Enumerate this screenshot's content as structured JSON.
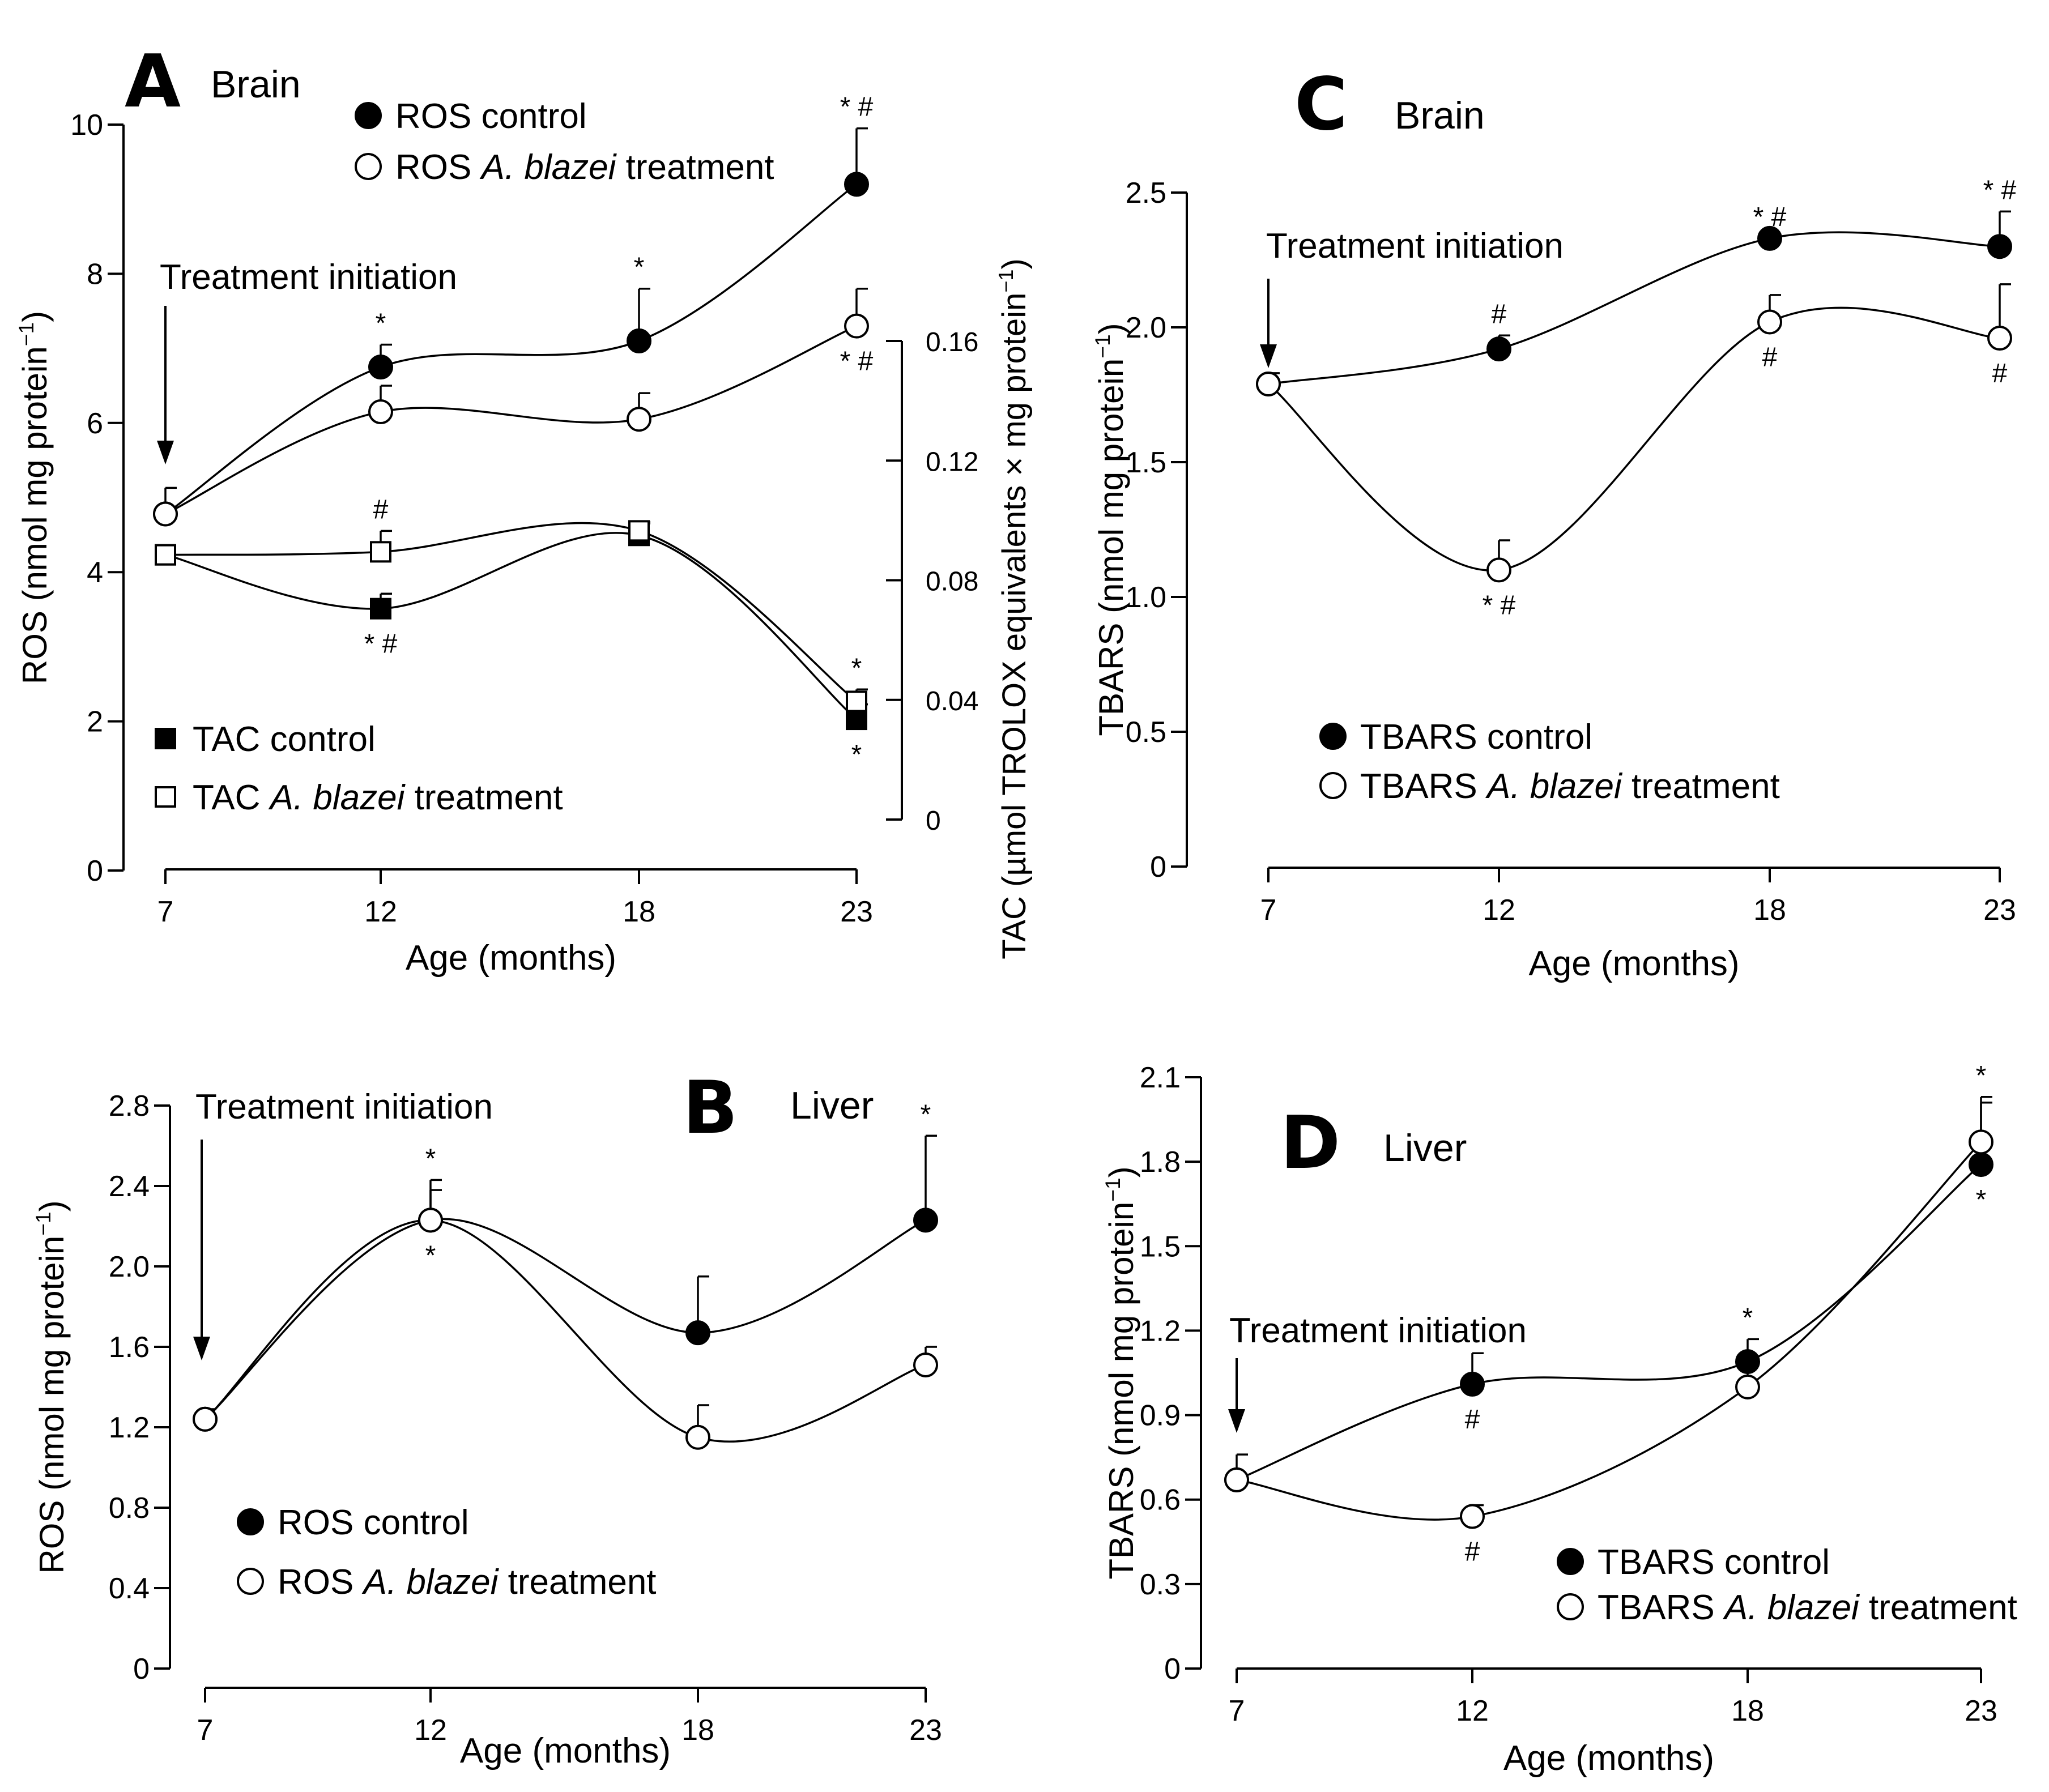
{
  "figure": {
    "panels": [
      "A",
      "B",
      "C",
      "D"
    ]
  },
  "chart_data": [
    {
      "id": "A",
      "type": "line",
      "panel_label": "A",
      "tissue": "Brain",
      "annotation": "Treatment  initiation",
      "xlabel": "Age (months)",
      "ylabel": "ROS (nmol mg protein⁻¹)",
      "y2label": "TAC (µmol TROLOX equivalents × mg protein⁻¹)",
      "x": [
        7,
        12,
        18,
        23
      ],
      "xticks": [
        "7",
        "12",
        "18",
        "23"
      ],
      "ylim": [
        0,
        10
      ],
      "yticks": [
        0,
        2,
        4,
        6,
        8,
        10
      ],
      "ytick_labels": [
        "0",
        "2",
        "4",
        "6",
        "8",
        "10"
      ],
      "y2lim": [
        0,
        0.16
      ],
      "y2ticks": [
        0,
        0.04,
        0.08,
        0.12,
        0.16
      ],
      "y2tick_labels": [
        "0",
        "0.04",
        "0.08",
        "0.12",
        "0.16"
      ],
      "series": [
        {
          "name": "ROS control",
          "legend": [
            "ROS control"
          ],
          "axis": "left",
          "marker": "filled-circle",
          "values": [
            4.78,
            6.75,
            7.1,
            9.2
          ],
          "errors": [
            0.35,
            0.3,
            0.7,
            0.75
          ],
          "annotations": [
            "",
            "*",
            "*",
            "* #"
          ],
          "annotation_pos": [
            "",
            "above",
            "above",
            "above"
          ]
        },
        {
          "name": "ROS A. blazei treatment",
          "legend": [
            "ROS ",
            "A. blazei",
            " treatment"
          ],
          "axis": "left",
          "marker": "open-circle",
          "values": [
            4.78,
            6.15,
            6.05,
            7.3
          ],
          "errors": [
            0,
            0.35,
            0.35,
            0.5
          ],
          "annotations": [
            "",
            "",
            "",
            "* #"
          ],
          "annotation_pos": [
            "",
            "",
            "",
            "below"
          ]
        },
        {
          "name": "TAC control",
          "legend": [
            "TAC control"
          ],
          "axis": "right",
          "marker": "filled-square",
          "values": [
            0.0885,
            0.0705,
            0.095,
            0.0335
          ],
          "errors": [
            0,
            0.005,
            0.004,
            0.005
          ],
          "annotations": [
            "",
            "* #",
            "",
            "*"
          ],
          "annotation_pos": [
            "",
            "below",
            "",
            "below"
          ]
        },
        {
          "name": "TAC A. blazei treatment",
          "legend": [
            "TAC ",
            "A. blazei",
            " treatment"
          ],
          "axis": "right",
          "marker": "open-square",
          "values": [
            0.0885,
            0.0895,
            0.0965,
            0.0395
          ],
          "errors": [
            0,
            0.007,
            0.003,
            0.004
          ],
          "annotations": [
            "",
            "#",
            "",
            "*"
          ],
          "annotation_pos": [
            "",
            "above",
            "",
            "above"
          ]
        }
      ]
    },
    {
      "id": "B",
      "type": "line",
      "panel_label": "B",
      "tissue": "Liver",
      "annotation": "Treatment initiation",
      "xlabel": "Age (months)",
      "ylabel": "ROS (nmol mg protein⁻¹)",
      "x": [
        7,
        12,
        18,
        23
      ],
      "xticks": [
        "7",
        "12",
        "18",
        "23"
      ],
      "ylim": [
        0,
        2.8
      ],
      "yticks": [
        0,
        0.4,
        0.8,
        1.2,
        1.6,
        2.0,
        2.4,
        2.8
      ],
      "ytick_labels": [
        "0",
        "0.4",
        "0.8",
        "1.2",
        "1.6",
        "2.0",
        "2.4",
        "2.8"
      ],
      "series": [
        {
          "name": "ROS control",
          "legend": [
            "ROS control"
          ],
          "axis": "left",
          "marker": "filled-circle",
          "values": [
            1.24,
            2.23,
            1.67,
            2.23
          ],
          "errors": [
            0.05,
            0.2,
            0.28,
            0.42
          ],
          "annotations": [
            "",
            "*",
            "",
            "*"
          ],
          "annotation_pos": [
            "",
            "above",
            "",
            "above"
          ]
        },
        {
          "name": "ROS A. blazei treatment",
          "legend": [
            "ROS ",
            "A. blazei",
            " treatment"
          ],
          "axis": "left",
          "marker": "open-circle",
          "values": [
            1.24,
            2.23,
            1.15,
            1.51
          ],
          "errors": [
            0,
            0.15,
            0.16,
            0.09
          ],
          "annotations": [
            "",
            "*",
            "",
            ""
          ],
          "annotation_pos": [
            "",
            "below",
            "",
            ""
          ]
        }
      ]
    },
    {
      "id": "C",
      "type": "line",
      "panel_label": "C",
      "tissue": "Brain",
      "annotation": "Treatment initiation",
      "xlabel": "Age (months)",
      "ylabel": "TBARS (nmol mg protein⁻¹)",
      "x": [
        7,
        12,
        18,
        23
      ],
      "xticks": [
        "7",
        "12",
        "18",
        "23"
      ],
      "ylim": [
        0,
        2.5
      ],
      "yticks": [
        0,
        0.5,
        1.0,
        1.5,
        2.0,
        2.5
      ],
      "ytick_labels": [
        "0",
        "0.5",
        "1.0",
        "1.5",
        "2.0",
        "2.5"
      ],
      "series": [
        {
          "name": "TBARS control",
          "legend": [
            "TBARS control"
          ],
          "axis": "left",
          "marker": "filled-circle",
          "values": [
            1.79,
            1.92,
            2.33,
            2.3
          ],
          "errors": [
            0.04,
            0.05,
            0,
            0.13
          ],
          "annotations": [
            "",
            "#",
            "* #",
            "* #"
          ],
          "annotation_pos": [
            "",
            "above",
            "above",
            "above"
          ]
        },
        {
          "name": "TBARS A. blazei treatment",
          "legend": [
            "TBARS ",
            "A. blazei",
            " treatment"
          ],
          "axis": "left",
          "marker": "open-circle",
          "values": [
            1.79,
            1.1,
            2.02,
            1.96
          ],
          "errors": [
            0,
            0.11,
            0.1,
            0.2
          ],
          "annotations": [
            "",
            "* #",
            "#",
            "#"
          ],
          "annotation_pos": [
            "",
            "below",
            "below",
            "below"
          ]
        }
      ]
    },
    {
      "id": "D",
      "type": "line",
      "panel_label": "D",
      "tissue": "Liver",
      "annotation": "Treatment initiation",
      "xlabel": "Age (months)",
      "ylabel": "TBARS (nmol mg protein⁻¹)",
      "x": [
        7,
        12,
        18,
        23
      ],
      "xticks": [
        "7",
        "12",
        "18",
        "23"
      ],
      "ylim": [
        0,
        2.1
      ],
      "yticks": [
        0,
        0.3,
        0.6,
        0.9,
        1.2,
        1.5,
        1.8,
        2.1
      ],
      "ytick_labels": [
        "0",
        "0.3",
        "0.6",
        "0.9",
        "1.2",
        "1.5",
        "1.8",
        "2.1"
      ],
      "series": [
        {
          "name": "TBARS control",
          "legend": [
            "TBARS control"
          ],
          "axis": "left",
          "marker": "filled-circle",
          "values": [
            0.67,
            1.01,
            1.09,
            1.79
          ],
          "errors": [
            0.09,
            0.11,
            0.08,
            0.22
          ],
          "annotations": [
            "",
            "#",
            "*",
            "*"
          ],
          "annotation_pos": [
            "",
            "below",
            "above",
            "below"
          ]
        },
        {
          "name": "TBARS A. blazei treatment",
          "legend": [
            "TBARS ",
            "A. blazei",
            " treatment"
          ],
          "axis": "left",
          "marker": "open-circle",
          "values": [
            0.67,
            0.54,
            1.0,
            1.87
          ],
          "errors": [
            0,
            0.04,
            0.08,
            0.16
          ],
          "annotations": [
            "",
            "#",
            "",
            "*"
          ],
          "annotation_pos": [
            "",
            "below",
            "",
            "above"
          ]
        }
      ]
    }
  ]
}
